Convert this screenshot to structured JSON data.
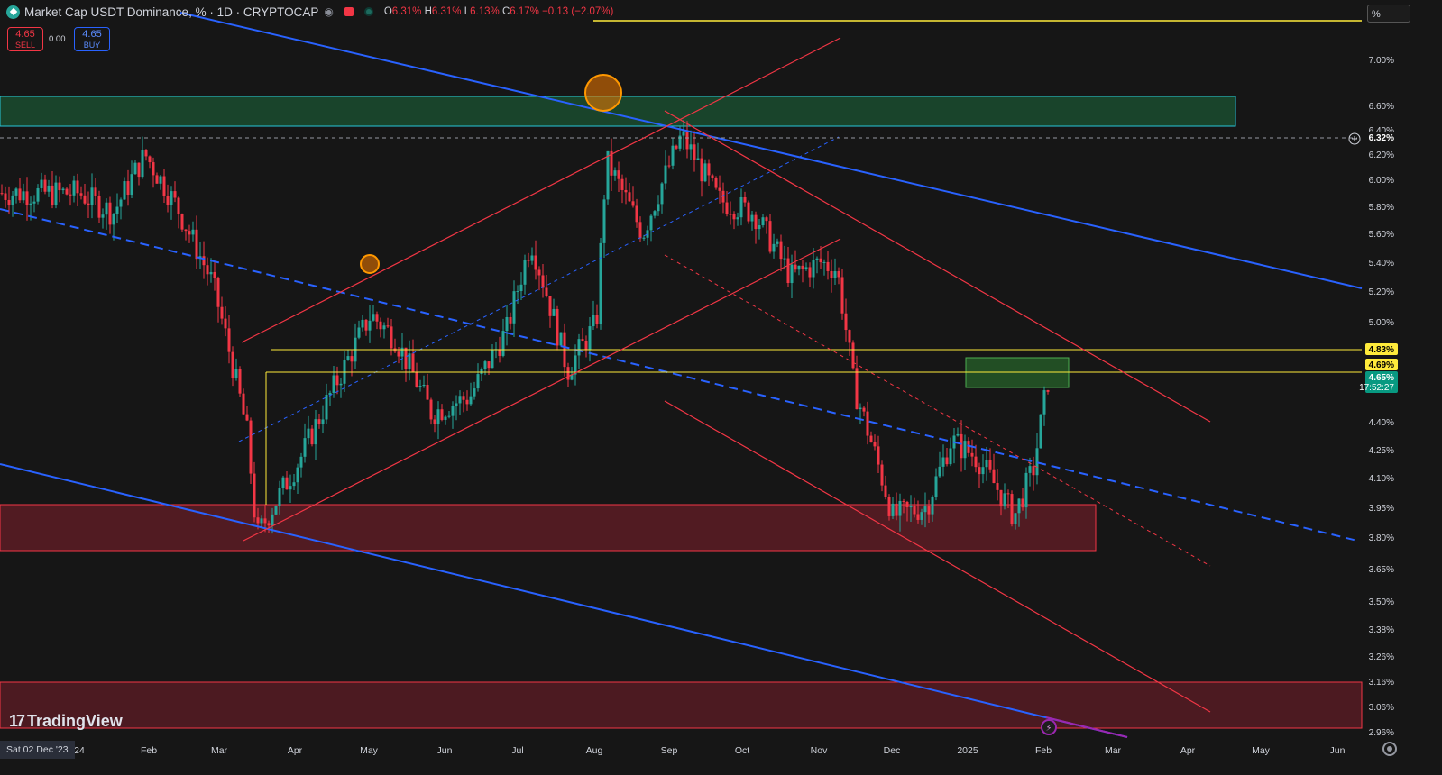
{
  "header": {
    "title": "Market Cap USDT Dominance, % · 1D · CRYPTOCAP",
    "ohlc": [
      {
        "label": "O",
        "value": "6.31%"
      },
      {
        "label": "H",
        "value": "6.31%"
      },
      {
        "label": "L",
        "value": "6.13%"
      },
      {
        "label": "C",
        "value": "6.17%"
      }
    ],
    "change": "−0.13 (−2.07%)"
  },
  "trade": {
    "sell_price": "4.65",
    "sell_label": "SELL",
    "buy_price": "4.65",
    "buy_label": "BUY",
    "spread": "0.00"
  },
  "scale_toggle": "%",
  "branding": "TradingView",
  "crosshair_date": "Sat 02 Dec '23",
  "price_axis": {
    "ticks": [
      "7.00%",
      "6.60%",
      "6.40%",
      "6.20%",
      "6.00%",
      "5.80%",
      "5.60%",
      "5.40%",
      "5.20%",
      "5.00%",
      "4.40%",
      "4.25%",
      "4.10%",
      "3.95%",
      "3.80%",
      "3.65%",
      "3.50%",
      "3.38%",
      "3.26%",
      "3.16%",
      "3.06%",
      "2.96%"
    ],
    "markers": [
      {
        "label": "6.32%",
        "kind": "crosshair"
      },
      {
        "label": "4.83%",
        "kind": "level"
      },
      {
        "label": "4.69%",
        "kind": "level"
      },
      {
        "label": "4.65%",
        "kind": "last"
      }
    ],
    "countdown": "17:52:27"
  },
  "time_axis": {
    "labels": [
      "24",
      "Feb",
      "Mar",
      "Apr",
      "May",
      "Jun",
      "Jul",
      "Aug",
      "Sep",
      "Oct",
      "Nov",
      "Dec",
      "2025",
      "Feb",
      "Mar",
      "Apr",
      "May",
      "Jun"
    ]
  },
  "colors": {
    "background": "#161616",
    "up": "#26a69a",
    "down": "#f23645",
    "trendline": "#2962ff",
    "level": "#ffeb3b",
    "channel": "#f23645",
    "supply_zone": "#26a69a",
    "demand_zone": "#c2185b"
  },
  "chart_data": {
    "type": "line",
    "title": "Market Cap USDT Dominance, % · 1D · CRYPTOCAP",
    "xlabel": "",
    "ylabel": "",
    "scale": "log",
    "ylim": [
      2.9,
      7.5
    ],
    "grid": false,
    "x": [
      "2024-01-01",
      "2024-01-15",
      "2024-01-28",
      "2024-02-10",
      "2024-02-25",
      "2024-03-10",
      "2024-03-14",
      "2024-04-01",
      "2024-04-20",
      "2024-04-30",
      "2024-05-10",
      "2024-05-25",
      "2024-06-10",
      "2024-06-25",
      "2024-07-05",
      "2024-07-20",
      "2024-08-01",
      "2024-08-05",
      "2024-08-20",
      "2024-09-05",
      "2024-09-20",
      "2024-10-05",
      "2024-10-20",
      "2024-11-01",
      "2024-11-08",
      "2024-11-15",
      "2024-12-01",
      "2024-12-15",
      "2024-12-25",
      "2025-01-05",
      "2025-01-20",
      "2025-01-28",
      "2025-02-03"
    ],
    "series": [
      {
        "values": [
          5.9,
          5.75,
          6.2,
          5.8,
          5.25,
          4.35,
          3.8,
          4.2,
          4.75,
          5.05,
          4.9,
          4.45,
          4.55,
          4.95,
          5.55,
          4.7,
          5.0,
          6.15,
          5.6,
          6.35,
          5.85,
          5.75,
          5.3,
          5.4,
          5.35,
          4.6,
          3.9,
          3.95,
          4.3,
          4.2,
          3.9,
          4.15,
          4.65
        ]
      }
    ]
  }
}
